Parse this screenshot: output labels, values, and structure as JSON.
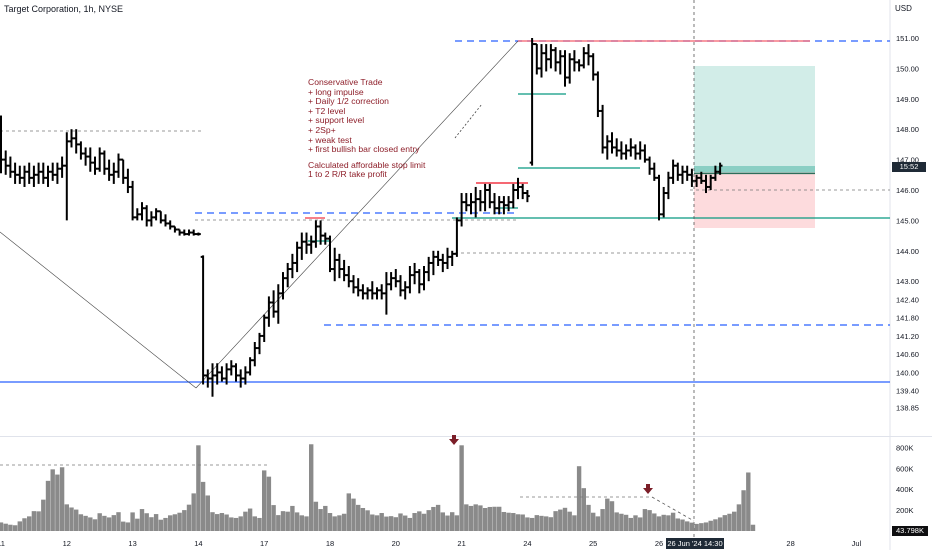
{
  "header": {
    "title": "Target Corporation, 1h, NYSE",
    "currency": "USD"
  },
  "annotation": {
    "lines": [
      "Conservative Trade",
      "+ long impulse",
      "+ Daily 1/2 correction",
      "+ T2 level",
      "+ support level",
      "+ 2Sp+",
      "+ weak test",
      "+ first bullish bar closed entry",
      "",
      "Calculated affordable stop limit",
      "1 to 2 R/R take profit"
    ]
  },
  "badges": {
    "clock": "15:52",
    "volume": "43.798K",
    "crosshair_date": "26 Jun '24",
    "crosshair_time": "14:30"
  },
  "colors": {
    "bars": "#000000",
    "blue_level": "#2962ff",
    "red_level": "#f23645",
    "green_level": "#089981",
    "note_text": "#8e1f2a",
    "volume_bars": "#8a8a8a",
    "arrow": "#7b1e28"
  },
  "chart_data": {
    "type": "ohlc",
    "price_axis": {
      "ticks": [
        {
          "v": 151.0,
          "label": "151.00"
        },
        {
          "v": 150.0,
          "label": "150.00"
        },
        {
          "v": 149.0,
          "label": "149.00"
        },
        {
          "v": 148.0,
          "label": "148.00"
        },
        {
          "v": 147.0,
          "label": "147.00"
        },
        {
          "v": 146.0,
          "label": "146.00"
        },
        {
          "v": 145.0,
          "label": "145.00"
        },
        {
          "v": 144.0,
          "label": "144.00"
        },
        {
          "v": 143.0,
          "label": "143.00"
        },
        {
          "v": 142.4,
          "label": "142.40"
        },
        {
          "v": 141.8,
          "label": "141.80"
        },
        {
          "v": 141.2,
          "label": "141.20"
        },
        {
          "v": 140.6,
          "label": "140.60"
        },
        {
          "v": 140.0,
          "label": "140.00"
        },
        {
          "v": 139.4,
          "label": "139.40"
        },
        {
          "v": 138.85,
          "label": "138.85"
        }
      ]
    },
    "x_axis": {
      "labels": [
        {
          "label": "11",
          "bar": 0
        },
        {
          "label": "12",
          "bar": 14
        },
        {
          "label": "13",
          "bar": 28
        },
        {
          "label": "14",
          "bar": 42
        },
        {
          "label": "17",
          "bar": 56
        },
        {
          "label": "18",
          "bar": 70
        },
        {
          "label": "20",
          "bar": 84
        },
        {
          "label": "21",
          "bar": 98
        },
        {
          "label": "24",
          "bar": 112
        },
        {
          "label": "25",
          "bar": 126
        },
        {
          "label": "26",
          "bar": 140
        },
        {
          "label": "28",
          "bar": 168
        },
        {
          "label": "Jul",
          "bar": 182
        }
      ]
    },
    "volume_axis": {
      "ticks": [
        {
          "v": 800,
          "label": "800K"
        },
        {
          "v": 600,
          "label": "600K"
        },
        {
          "v": 400,
          "label": "400K"
        },
        {
          "v": 200,
          "label": "200K"
        }
      ]
    },
    "ohlc": [
      [
        148.0,
        148.45,
        146.55,
        147.0
      ],
      [
        147.0,
        147.3,
        146.5,
        146.8
      ],
      [
        146.8,
        147.1,
        146.4,
        146.6
      ],
      [
        146.6,
        146.9,
        146.2,
        146.5
      ],
      [
        146.5,
        146.8,
        146.2,
        146.4
      ],
      [
        146.4,
        146.8,
        146.1,
        146.6
      ],
      [
        146.6,
        146.9,
        146.2,
        146.4
      ],
      [
        146.4,
        146.8,
        146.1,
        146.5
      ],
      [
        146.5,
        146.9,
        146.2,
        146.6
      ],
      [
        146.6,
        146.9,
        146.2,
        146.4
      ],
      [
        146.4,
        146.8,
        146.1,
        146.6
      ],
      [
        146.6,
        146.9,
        146.3,
        146.5
      ],
      [
        146.5,
        146.9,
        146.2,
        146.7
      ],
      [
        146.7,
        147.1,
        146.4,
        146.8
      ],
      [
        146.8,
        147.9,
        145.0,
        147.6
      ],
      [
        147.6,
        148.0,
        147.4,
        147.7
      ],
      [
        147.7,
        148.0,
        147.2,
        147.5
      ],
      [
        147.5,
        147.6,
        147.0,
        147.2
      ],
      [
        147.2,
        147.4,
        146.8,
        147.1
      ],
      [
        147.1,
        147.4,
        146.6,
        146.9
      ],
      [
        146.9,
        147.1,
        146.5,
        146.7
      ],
      [
        146.7,
        147.4,
        146.6,
        147.2
      ],
      [
        147.2,
        147.3,
        146.5,
        146.7
      ],
      [
        146.7,
        147.0,
        146.3,
        146.5
      ],
      [
        146.5,
        146.9,
        146.2,
        146.6
      ],
      [
        146.6,
        147.2,
        146.4,
        147.0
      ],
      [
        147.0,
        147.0,
        146.2,
        146.4
      ],
      [
        146.4,
        146.7,
        145.9,
        146.1
      ],
      [
        146.1,
        146.3,
        145.0,
        145.1
      ],
      [
        145.1,
        145.4,
        145.0,
        145.2
      ],
      [
        145.2,
        145.6,
        145.0,
        145.4
      ],
      [
        145.4,
        145.5,
        144.8,
        145.0
      ],
      [
        145.0,
        145.3,
        144.8,
        145.1
      ],
      [
        145.1,
        145.4,
        145.0,
        145.3
      ],
      [
        145.3,
        145.3,
        144.9,
        145.0
      ],
      [
        145.0,
        145.2,
        144.8,
        144.9
      ],
      [
        144.9,
        145.0,
        144.7,
        144.8
      ],
      [
        144.8,
        144.8,
        144.6,
        144.7
      ],
      [
        144.7,
        144.7,
        144.5,
        144.6
      ],
      [
        144.6,
        144.7,
        144.5,
        144.55
      ],
      [
        144.55,
        144.7,
        144.5,
        144.6
      ],
      [
        144.6,
        144.7,
        144.5,
        144.55
      ],
      [
        144.55,
        144.6,
        144.5,
        144.55
      ],
      [
        143.8,
        143.85,
        139.6,
        139.9
      ],
      [
        139.9,
        140.1,
        139.5,
        139.8
      ],
      [
        139.8,
        140.3,
        139.2,
        139.9
      ],
      [
        139.9,
        140.3,
        139.6,
        140.0
      ],
      [
        140.0,
        140.2,
        139.7,
        139.8
      ],
      [
        139.8,
        140.3,
        139.6,
        140.1
      ],
      [
        140.1,
        140.4,
        139.9,
        140.2
      ],
      [
        140.2,
        140.3,
        139.7,
        139.9
      ],
      [
        139.9,
        140.1,
        139.5,
        139.8
      ],
      [
        139.8,
        140.2,
        139.6,
        140.0
      ],
      [
        140.0,
        140.5,
        139.9,
        140.4
      ],
      [
        140.4,
        141.0,
        140.2,
        140.8
      ],
      [
        140.8,
        141.3,
        140.6,
        141.2
      ],
      [
        141.2,
        141.9,
        141.0,
        141.8
      ],
      [
        141.8,
        142.5,
        141.5,
        142.3
      ],
      [
        142.3,
        142.7,
        141.8,
        142.0
      ],
      [
        142.0,
        142.9,
        141.6,
        142.6
      ],
      [
        142.6,
        143.3,
        142.4,
        143.1
      ],
      [
        143.1,
        143.6,
        142.8,
        143.4
      ],
      [
        143.4,
        143.9,
        143.1,
        143.6
      ],
      [
        143.6,
        144.3,
        143.3,
        144.1
      ],
      [
        144.1,
        144.6,
        143.7,
        144.3
      ],
      [
        144.3,
        144.6,
        143.9,
        144.2
      ],
      [
        144.2,
        144.5,
        143.9,
        144.3
      ],
      [
        144.3,
        145.0,
        144.1,
        144.8
      ],
      [
        144.8,
        145.0,
        144.2,
        144.5
      ],
      [
        144.5,
        144.6,
        144.2,
        144.4
      ],
      [
        144.4,
        144.5,
        143.3,
        143.4
      ],
      [
        143.4,
        144.1,
        143.0,
        143.7
      ],
      [
        143.7,
        143.9,
        143.1,
        143.4
      ],
      [
        143.4,
        143.7,
        143.0,
        143.2
      ],
      [
        143.2,
        143.5,
        142.8,
        143.0
      ],
      [
        143.0,
        143.2,
        142.6,
        142.8
      ],
      [
        142.8,
        143.1,
        142.5,
        142.7
      ],
      [
        142.7,
        142.9,
        142.4,
        142.6
      ],
      [
        142.6,
        142.8,
        142.4,
        142.7
      ],
      [
        142.7,
        143.0,
        142.4,
        142.6
      ],
      [
        142.6,
        142.8,
        142.4,
        142.7
      ],
      [
        142.7,
        142.9,
        142.4,
        142.6
      ],
      [
        142.6,
        143.3,
        141.9,
        142.9
      ],
      [
        142.9,
        143.3,
        142.7,
        143.1
      ],
      [
        143.1,
        143.4,
        142.8,
        143.0
      ],
      [
        143.0,
        143.2,
        142.5,
        142.7
      ],
      [
        142.7,
        143.0,
        142.4,
        142.8
      ],
      [
        142.8,
        143.5,
        142.6,
        143.2
      ],
      [
        143.2,
        143.6,
        142.9,
        143.3
      ],
      [
        143.3,
        143.4,
        142.6,
        142.9
      ],
      [
        142.9,
        143.5,
        142.7,
        143.3
      ],
      [
        143.3,
        143.8,
        143.0,
        143.6
      ],
      [
        143.6,
        144.0,
        143.2,
        143.8
      ],
      [
        143.8,
        144.0,
        143.5,
        143.7
      ],
      [
        143.7,
        143.9,
        143.3,
        143.6
      ],
      [
        143.6,
        144.1,
        143.4,
        143.8
      ],
      [
        143.8,
        144.0,
        143.5,
        143.9
      ],
      [
        143.9,
        145.1,
        143.8,
        145.0
      ],
      [
        145.0,
        145.9,
        144.8,
        145.6
      ],
      [
        145.6,
        145.9,
        145.3,
        145.5
      ],
      [
        145.5,
        145.9,
        145.2,
        145.6
      ],
      [
        145.6,
        146.1,
        145.1,
        145.7
      ],
      [
        145.7,
        146.0,
        145.3,
        145.6
      ],
      [
        145.6,
        146.2,
        145.3,
        146.0
      ],
      [
        146.0,
        146.2,
        145.4,
        145.6
      ],
      [
        145.6,
        145.9,
        145.2,
        145.4
      ],
      [
        145.4,
        145.8,
        145.2,
        145.6
      ],
      [
        145.6,
        145.8,
        145.2,
        145.5
      ],
      [
        145.5,
        145.8,
        145.3,
        145.6
      ],
      [
        145.6,
        146.2,
        145.4,
        146.0
      ],
      [
        146.0,
        146.4,
        145.7,
        146.1
      ],
      [
        146.1,
        146.2,
        145.7,
        145.9
      ],
      [
        145.9,
        146.0,
        145.6,
        145.8
      ],
      [
        146.9,
        151.0,
        146.8,
        150.8
      ],
      [
        150.8,
        150.8,
        149.8,
        150.0
      ],
      [
        150.0,
        150.8,
        149.7,
        150.5
      ],
      [
        150.5,
        150.8,
        149.9,
        150.3
      ],
      [
        150.3,
        150.8,
        150.0,
        150.6
      ],
      [
        150.6,
        150.7,
        149.9,
        150.2
      ],
      [
        150.2,
        150.6,
        149.8,
        150.4
      ],
      [
        150.4,
        150.6,
        149.4,
        149.7
      ],
      [
        149.7,
        150.5,
        149.5,
        150.3
      ],
      [
        150.3,
        150.6,
        149.9,
        150.2
      ],
      [
        150.2,
        150.3,
        149.9,
        150.1
      ],
      [
        150.1,
        150.7,
        150.0,
        150.5
      ],
      [
        150.5,
        150.8,
        150.1,
        150.4
      ],
      [
        150.4,
        150.5,
        149.6,
        149.8
      ],
      [
        149.8,
        149.9,
        148.4,
        148.6
      ],
      [
        148.6,
        148.8,
        147.2,
        147.4
      ],
      [
        147.4,
        147.8,
        147.0,
        147.6
      ],
      [
        147.6,
        147.9,
        147.2,
        147.4
      ],
      [
        147.4,
        147.7,
        147.1,
        147.3
      ],
      [
        147.3,
        147.6,
        147.0,
        147.2
      ],
      [
        147.2,
        147.5,
        147.0,
        147.3
      ],
      [
        147.3,
        147.7,
        147.1,
        147.4
      ],
      [
        147.4,
        147.5,
        147.0,
        147.2
      ],
      [
        147.2,
        147.6,
        147.0,
        147.3
      ],
      [
        147.3,
        147.5,
        146.9,
        147.0
      ],
      [
        147.0,
        147.1,
        146.5,
        146.7
      ],
      [
        146.7,
        146.9,
        146.3,
        146.4
      ],
      [
        146.4,
        146.5,
        145.0,
        145.2
      ],
      [
        145.2,
        146.1,
        145.1,
        145.9
      ],
      [
        145.9,
        146.6,
        145.7,
        146.4
      ],
      [
        146.4,
        147.0,
        146.2,
        146.8
      ],
      [
        146.8,
        146.9,
        146.3,
        146.5
      ],
      [
        146.5,
        146.8,
        146.2,
        146.6
      ],
      [
        146.6,
        146.8,
        146.3,
        146.5
      ],
      [
        146.5,
        146.7,
        146.1,
        146.3
      ],
      [
        146.3,
        146.5,
        146.1,
        146.4
      ],
      [
        146.4,
        146.6,
        146.2,
        146.3
      ],
      [
        146.3,
        146.5,
        145.9,
        146.1
      ],
      [
        146.1,
        146.5,
        146.0,
        146.4
      ],
      [
        146.4,
        146.8,
        146.3,
        146.6
      ],
      [
        146.6,
        146.9,
        146.5,
        146.8
      ]
    ],
    "volume": [
      82,
      70,
      60,
      55,
      92,
      122,
      140,
      190,
      188,
      300,
      480,
      590,
      540,
      610,
      255,
      225,
      205,
      160,
      145,
      130,
      112,
      170,
      145,
      130,
      152,
      180,
      90,
      82,
      178,
      118,
      210,
      170,
      132,
      162,
      108,
      125,
      150,
      160,
      175,
      200,
      252,
      360,
      820,
      470,
      340,
      180,
      162,
      172,
      158,
      130,
      125,
      140,
      185,
      215,
      140,
      125,
      580,
      520,
      248,
      152,
      190,
      185,
      240,
      178,
      150,
      140,
      830,
      280,
      210,
      240,
      172,
      140,
      150,
      165,
      360,
      310,
      250,
      220,
      198,
      158,
      150,
      172,
      138,
      142,
      132,
      168,
      148,
      125,
      172,
      188,
      165,
      200,
      230,
      250,
      178,
      148,
      180,
      150,
      820,
      255,
      240,
      255,
      245,
      220,
      230,
      232,
      232,
      182,
      175,
      172,
      160,
      158,
      130,
      125,
      152,
      145,
      140,
      132,
      190,
      205,
      222,
      185,
      150,
      620,
      410,
      250,
      175,
      140,
      210,
      310,
      285,
      178,
      165,
      155,
      125,
      150,
      130,
      210,
      200,
      168,
      140,
      155,
      150,
      175,
      120,
      110,
      92,
      80,
      68,
      75,
      82,
      98,
      112,
      130,
      152,
      165,
      185,
      255,
      390,
      560,
      60
    ]
  },
  "note_vol": "see chart_data.volume"
}
